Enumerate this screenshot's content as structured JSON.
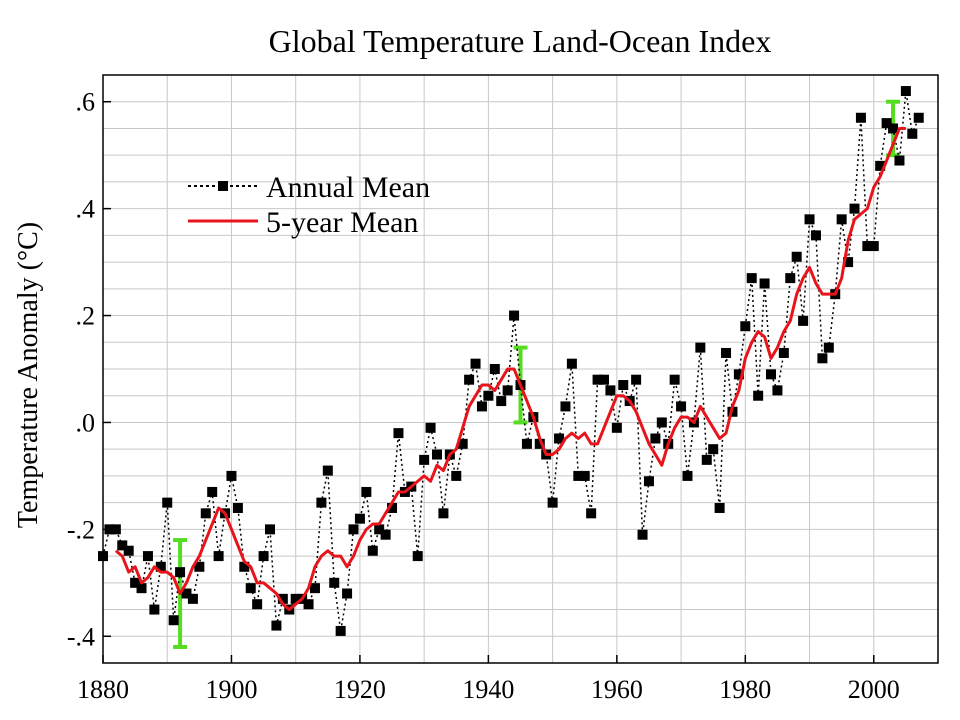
{
  "chart_data": {
    "type": "line",
    "title": "Global Temperature Land-Ocean Index",
    "xlabel": "",
    "ylabel": "Temperature Anomaly (°C)",
    "xlim": [
      1880,
      2010
    ],
    "ylim": [
      -0.45,
      0.65
    ],
    "x_ticks": [
      1880,
      1900,
      1920,
      1940,
      1960,
      1980,
      2000
    ],
    "x_tick_labels": [
      "1880",
      "1900",
      "1920",
      "1940",
      "1960",
      "1980",
      "2000"
    ],
    "y_ticks": [
      -0.4,
      -0.2,
      0.0,
      0.2,
      0.4,
      0.6
    ],
    "y_tick_labels": [
      "-.4",
      "-.2",
      ".0",
      ".2",
      ".4",
      ".6"
    ],
    "grid": true,
    "legend_position": "upper-left",
    "series": [
      {
        "name": "Annual Mean",
        "style": "dotted-line-square-markers",
        "color": "#000000",
        "x": [
          1880,
          1881,
          1882,
          1883,
          1884,
          1885,
          1886,
          1887,
          1888,
          1889,
          1890,
          1891,
          1892,
          1893,
          1894,
          1895,
          1896,
          1897,
          1898,
          1899,
          1900,
          1901,
          1902,
          1903,
          1904,
          1905,
          1906,
          1907,
          1908,
          1909,
          1910,
          1911,
          1912,
          1913,
          1914,
          1915,
          1916,
          1917,
          1918,
          1919,
          1920,
          1921,
          1922,
          1923,
          1924,
          1925,
          1926,
          1927,
          1928,
          1929,
          1930,
          1931,
          1932,
          1933,
          1934,
          1935,
          1936,
          1937,
          1938,
          1939,
          1940,
          1941,
          1942,
          1943,
          1944,
          1945,
          1946,
          1947,
          1948,
          1949,
          1950,
          1951,
          1952,
          1953,
          1954,
          1955,
          1956,
          1957,
          1958,
          1959,
          1960,
          1961,
          1962,
          1963,
          1964,
          1965,
          1966,
          1967,
          1968,
          1969,
          1970,
          1971,
          1972,
          1973,
          1974,
          1975,
          1976,
          1977,
          1978,
          1979,
          1980,
          1981,
          1982,
          1983,
          1984,
          1985,
          1986,
          1987,
          1988,
          1989,
          1990,
          1991,
          1992,
          1993,
          1994,
          1995,
          1996,
          1997,
          1998,
          1999,
          2000,
          2001,
          2002,
          2003,
          2004,
          2005,
          2006,
          2007
        ],
        "values": [
          -0.25,
          -0.2,
          -0.2,
          -0.23,
          -0.24,
          -0.3,
          -0.31,
          -0.25,
          -0.35,
          -0.27,
          -0.15,
          -0.37,
          -0.28,
          -0.32,
          -0.33,
          -0.27,
          -0.17,
          -0.13,
          -0.25,
          -0.17,
          -0.1,
          -0.16,
          -0.27,
          -0.31,
          -0.34,
          -0.25,
          -0.2,
          -0.38,
          -0.33,
          -0.35,
          -0.33,
          -0.33,
          -0.34,
          -0.31,
          -0.15,
          -0.09,
          -0.3,
          -0.39,
          -0.32,
          -0.2,
          -0.18,
          -0.13,
          -0.24,
          -0.2,
          -0.21,
          -0.16,
          -0.02,
          -0.13,
          -0.12,
          -0.25,
          -0.07,
          -0.01,
          -0.06,
          -0.17,
          -0.06,
          -0.1,
          -0.04,
          0.08,
          0.11,
          0.03,
          0.05,
          0.1,
          0.04,
          0.06,
          0.2,
          0.07,
          -0.04,
          0.01,
          -0.04,
          -0.06,
          -0.15,
          -0.03,
          0.03,
          0.11,
          -0.1,
          -0.1,
          -0.17,
          0.08,
          0.08,
          0.06,
          -0.01,
          0.07,
          0.04,
          0.08,
          -0.21,
          -0.11,
          -0.03,
          0.0,
          -0.04,
          0.08,
          0.03,
          -0.1,
          0.0,
          0.14,
          -0.07,
          -0.05,
          -0.16,
          0.13,
          0.02,
          0.09,
          0.18,
          0.27,
          0.05,
          0.26,
          0.09,
          0.06,
          0.13,
          0.27,
          0.31,
          0.19,
          0.38,
          0.35,
          0.12,
          0.14,
          0.24,
          0.38,
          0.3,
          0.4,
          0.57,
          0.33,
          0.33,
          0.48,
          0.56,
          0.55,
          0.49,
          0.62,
          0.54,
          0.57
        ]
      },
      {
        "name": "5-year Mean",
        "style": "solid-line",
        "color": "#e8141b",
        "x": [
          1882,
          1883,
          1884,
          1885,
          1886,
          1887,
          1888,
          1889,
          1890,
          1891,
          1892,
          1893,
          1894,
          1895,
          1896,
          1897,
          1898,
          1899,
          1900,
          1901,
          1902,
          1903,
          1904,
          1905,
          1906,
          1907,
          1908,
          1909,
          1910,
          1911,
          1912,
          1913,
          1914,
          1915,
          1916,
          1917,
          1918,
          1919,
          1920,
          1921,
          1922,
          1923,
          1924,
          1925,
          1926,
          1927,
          1928,
          1929,
          1930,
          1931,
          1932,
          1933,
          1934,
          1935,
          1936,
          1937,
          1938,
          1939,
          1940,
          1941,
          1942,
          1943,
          1944,
          1945,
          1946,
          1947,
          1948,
          1949,
          1950,
          1951,
          1952,
          1953,
          1954,
          1955,
          1956,
          1957,
          1958,
          1959,
          1960,
          1961,
          1962,
          1963,
          1964,
          1965,
          1966,
          1967,
          1968,
          1969,
          1970,
          1971,
          1972,
          1973,
          1974,
          1975,
          1976,
          1977,
          1978,
          1979,
          1980,
          1981,
          1982,
          1983,
          1984,
          1985,
          1986,
          1987,
          1988,
          1989,
          1990,
          1991,
          1992,
          1993,
          1994,
          1995,
          1996,
          1997,
          1998,
          1999,
          2000,
          2001,
          2002,
          2003,
          2004,
          2005
        ],
        "values": [
          -0.24,
          -0.25,
          -0.28,
          -0.27,
          -0.3,
          -0.29,
          -0.27,
          -0.28,
          -0.28,
          -0.29,
          -0.32,
          -0.3,
          -0.27,
          -0.25,
          -0.22,
          -0.19,
          -0.16,
          -0.17,
          -0.2,
          -0.23,
          -0.26,
          -0.27,
          -0.3,
          -0.3,
          -0.31,
          -0.32,
          -0.34,
          -0.35,
          -0.34,
          -0.33,
          -0.31,
          -0.27,
          -0.25,
          -0.24,
          -0.25,
          -0.25,
          -0.27,
          -0.25,
          -0.22,
          -0.2,
          -0.19,
          -0.19,
          -0.17,
          -0.15,
          -0.13,
          -0.13,
          -0.12,
          -0.11,
          -0.1,
          -0.11,
          -0.08,
          -0.09,
          -0.06,
          -0.05,
          -0.01,
          0.03,
          0.05,
          0.07,
          0.07,
          0.06,
          0.08,
          0.1,
          0.1,
          0.07,
          0.04,
          0.01,
          -0.03,
          -0.06,
          -0.06,
          -0.05,
          -0.03,
          -0.02,
          -0.03,
          -0.02,
          -0.04,
          -0.04,
          -0.01,
          0.02,
          0.05,
          0.05,
          0.04,
          0.02,
          -0.01,
          -0.04,
          -0.06,
          -0.08,
          -0.04,
          -0.01,
          0.01,
          0.01,
          0.0,
          0.03,
          0.01,
          -0.01,
          -0.03,
          -0.02,
          0.03,
          0.06,
          0.12,
          0.15,
          0.17,
          0.16,
          0.12,
          0.14,
          0.17,
          0.19,
          0.24,
          0.27,
          0.29,
          0.26,
          0.24,
          0.24,
          0.24,
          0.27,
          0.34,
          0.38,
          0.39,
          0.4,
          0.44,
          0.46,
          0.49,
          0.52,
          0.55,
          0.55
        ]
      }
    ],
    "error_bars": {
      "color": "#55dd22",
      "items": [
        {
          "x": 1892,
          "low": -0.42,
          "high": -0.22
        },
        {
          "x": 1945,
          "low": 0.0,
          "high": 0.14
        },
        {
          "x": 2003,
          "low": 0.5,
          "high": 0.6
        }
      ]
    }
  }
}
